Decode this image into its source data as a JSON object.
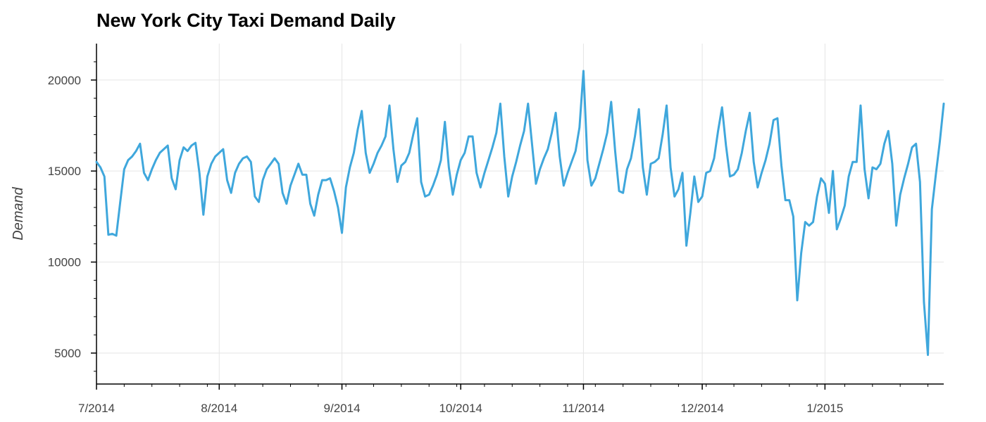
{
  "chart_data": {
    "type": "line",
    "title": "New York City Taxi Demand Daily",
    "xlabel": "",
    "ylabel": "Demand",
    "x_start": "2014-07-01",
    "x_end": "2015-01-31",
    "ylim": [
      3300,
      22000
    ],
    "grid": true,
    "x_ticks": [
      {
        "date": "2014-07-01",
        "label": "7/2014"
      },
      {
        "date": "2014-08-01",
        "label": "8/2014"
      },
      {
        "date": "2014-09-01",
        "label": "9/2014"
      },
      {
        "date": "2014-10-01",
        "label": "10/2014"
      },
      {
        "date": "2014-11-01",
        "label": "11/2014"
      },
      {
        "date": "2014-12-01",
        "label": "12/2014"
      },
      {
        "date": "2015-01-01",
        "label": "1/2015"
      }
    ],
    "y_ticks": [
      5000,
      10000,
      15000,
      20000
    ],
    "series": [
      {
        "color": "#3fa7dc",
        "points": [
          [
            "2014-07-01",
            15500
          ],
          [
            "2014-07-02",
            15200
          ],
          [
            "2014-07-03",
            14700
          ],
          [
            "2014-07-04",
            11500
          ],
          [
            "2014-07-05",
            11550
          ],
          [
            "2014-07-06",
            11450
          ],
          [
            "2014-07-07",
            13300
          ],
          [
            "2014-07-08",
            15100
          ],
          [
            "2014-07-09",
            15600
          ],
          [
            "2014-07-10",
            15800
          ],
          [
            "2014-07-11",
            16100
          ],
          [
            "2014-07-12",
            16500
          ],
          [
            "2014-07-13",
            14900
          ],
          [
            "2014-07-14",
            14500
          ],
          [
            "2014-07-15",
            15100
          ],
          [
            "2014-07-16",
            15600
          ],
          [
            "2014-07-17",
            16000
          ],
          [
            "2014-07-18",
            16200
          ],
          [
            "2014-07-19",
            16400
          ],
          [
            "2014-07-20",
            14600
          ],
          [
            "2014-07-21",
            14000
          ],
          [
            "2014-07-22",
            15600
          ],
          [
            "2014-07-23",
            16300
          ],
          [
            "2014-07-24",
            16100
          ],
          [
            "2014-07-25",
            16400
          ],
          [
            "2014-07-26",
            16550
          ],
          [
            "2014-07-27",
            14900
          ],
          [
            "2014-07-28",
            12600
          ],
          [
            "2014-07-29",
            14700
          ],
          [
            "2014-07-30",
            15400
          ],
          [
            "2014-07-31",
            15800
          ],
          [
            "2014-08-01",
            16000
          ],
          [
            "2014-08-02",
            16200
          ],
          [
            "2014-08-03",
            14500
          ],
          [
            "2014-08-04",
            13800
          ],
          [
            "2014-08-05",
            14900
          ],
          [
            "2014-08-06",
            15400
          ],
          [
            "2014-08-07",
            15700
          ],
          [
            "2014-08-08",
            15800
          ],
          [
            "2014-08-09",
            15500
          ],
          [
            "2014-08-10",
            13600
          ],
          [
            "2014-08-11",
            13300
          ],
          [
            "2014-08-12",
            14500
          ],
          [
            "2014-08-13",
            15100
          ],
          [
            "2014-08-14",
            15400
          ],
          [
            "2014-08-15",
            15700
          ],
          [
            "2014-08-16",
            15400
          ],
          [
            "2014-08-17",
            13800
          ],
          [
            "2014-08-18",
            13200
          ],
          [
            "2014-08-19",
            14200
          ],
          [
            "2014-08-20",
            14800
          ],
          [
            "2014-08-21",
            15400
          ],
          [
            "2014-08-22",
            14800
          ],
          [
            "2014-08-23",
            14800
          ],
          [
            "2014-08-24",
            13200
          ],
          [
            "2014-08-25",
            12550
          ],
          [
            "2014-08-26",
            13700
          ],
          [
            "2014-08-27",
            14500
          ],
          [
            "2014-08-28",
            14500
          ],
          [
            "2014-08-29",
            14600
          ],
          [
            "2014-08-30",
            13900
          ],
          [
            "2014-08-31",
            13000
          ],
          [
            "2014-09-01",
            11600
          ],
          [
            "2014-09-02",
            14100
          ],
          [
            "2014-09-03",
            15200
          ],
          [
            "2014-09-04",
            16000
          ],
          [
            "2014-09-05",
            17300
          ],
          [
            "2014-09-06",
            18300
          ],
          [
            "2014-09-07",
            16000
          ],
          [
            "2014-09-08",
            14900
          ],
          [
            "2014-09-09",
            15400
          ],
          [
            "2014-09-10",
            16000
          ],
          [
            "2014-09-11",
            16400
          ],
          [
            "2014-09-12",
            16900
          ],
          [
            "2014-09-13",
            18600
          ],
          [
            "2014-09-14",
            16200
          ],
          [
            "2014-09-15",
            14400
          ],
          [
            "2014-09-16",
            15300
          ],
          [
            "2014-09-17",
            15500
          ],
          [
            "2014-09-18",
            16000
          ],
          [
            "2014-09-19",
            17000
          ],
          [
            "2014-09-20",
            17900
          ],
          [
            "2014-09-21",
            14400
          ],
          [
            "2014-09-22",
            13600
          ],
          [
            "2014-09-23",
            13700
          ],
          [
            "2014-09-24",
            14200
          ],
          [
            "2014-09-25",
            14800
          ],
          [
            "2014-09-26",
            15600
          ],
          [
            "2014-09-27",
            17700
          ],
          [
            "2014-09-28",
            15200
          ],
          [
            "2014-09-29",
            13700
          ],
          [
            "2014-09-30",
            14800
          ],
          [
            "2014-10-01",
            15600
          ],
          [
            "2014-10-02",
            16000
          ],
          [
            "2014-10-03",
            16900
          ],
          [
            "2014-10-04",
            16900
          ],
          [
            "2014-10-05",
            14900
          ],
          [
            "2014-10-06",
            14100
          ],
          [
            "2014-10-07",
            14900
          ],
          [
            "2014-10-08",
            15600
          ],
          [
            "2014-10-09",
            16300
          ],
          [
            "2014-10-10",
            17100
          ],
          [
            "2014-10-11",
            18700
          ],
          [
            "2014-10-12",
            15800
          ],
          [
            "2014-10-13",
            13600
          ],
          [
            "2014-10-14",
            14700
          ],
          [
            "2014-10-15",
            15500
          ],
          [
            "2014-10-16",
            16400
          ],
          [
            "2014-10-17",
            17200
          ],
          [
            "2014-10-18",
            18700
          ],
          [
            "2014-10-19",
            16500
          ],
          [
            "2014-10-20",
            14300
          ],
          [
            "2014-10-21",
            15100
          ],
          [
            "2014-10-22",
            15700
          ],
          [
            "2014-10-23",
            16200
          ],
          [
            "2014-10-24",
            17100
          ],
          [
            "2014-10-25",
            18200
          ],
          [
            "2014-10-26",
            15800
          ],
          [
            "2014-10-27",
            14200
          ],
          [
            "2014-10-28",
            14900
          ],
          [
            "2014-10-29",
            15500
          ],
          [
            "2014-10-30",
            16100
          ],
          [
            "2014-10-31",
            17400
          ],
          [
            "2014-11-01",
            20500
          ],
          [
            "2014-11-02",
            15600
          ],
          [
            "2014-11-03",
            14200
          ],
          [
            "2014-11-04",
            14600
          ],
          [
            "2014-11-05",
            15400
          ],
          [
            "2014-11-06",
            16200
          ],
          [
            "2014-11-07",
            17100
          ],
          [
            "2014-11-08",
            18800
          ],
          [
            "2014-11-09",
            16100
          ],
          [
            "2014-11-10",
            13900
          ],
          [
            "2014-11-11",
            13800
          ],
          [
            "2014-11-12",
            15100
          ],
          [
            "2014-11-13",
            15700
          ],
          [
            "2014-11-14",
            16900
          ],
          [
            "2014-11-15",
            18400
          ],
          [
            "2014-11-16",
            15200
          ],
          [
            "2014-11-17",
            13700
          ],
          [
            "2014-11-18",
            15400
          ],
          [
            "2014-11-19",
            15500
          ],
          [
            "2014-11-20",
            15700
          ],
          [
            "2014-11-21",
            17000
          ],
          [
            "2014-11-22",
            18600
          ],
          [
            "2014-11-23",
            15200
          ],
          [
            "2014-11-24",
            13600
          ],
          [
            "2014-11-25",
            14000
          ],
          [
            "2014-11-26",
            14900
          ],
          [
            "2014-11-27",
            10900
          ],
          [
            "2014-11-28",
            12700
          ],
          [
            "2014-11-29",
            14700
          ],
          [
            "2014-11-30",
            13300
          ],
          [
            "2014-12-01",
            13600
          ],
          [
            "2014-12-02",
            14900
          ],
          [
            "2014-12-03",
            15000
          ],
          [
            "2014-12-04",
            15700
          ],
          [
            "2014-12-05",
            17200
          ],
          [
            "2014-12-06",
            18500
          ],
          [
            "2014-12-07",
            16400
          ],
          [
            "2014-12-08",
            14700
          ],
          [
            "2014-12-09",
            14800
          ],
          [
            "2014-12-10",
            15100
          ],
          [
            "2014-12-11",
            16000
          ],
          [
            "2014-12-12",
            17200
          ],
          [
            "2014-12-13",
            18200
          ],
          [
            "2014-12-14",
            15500
          ],
          [
            "2014-12-15",
            14100
          ],
          [
            "2014-12-16",
            14900
          ],
          [
            "2014-12-17",
            15600
          ],
          [
            "2014-12-18",
            16500
          ],
          [
            "2014-12-19",
            17800
          ],
          [
            "2014-12-20",
            17900
          ],
          [
            "2014-12-21",
            15300
          ],
          [
            "2014-12-22",
            13400
          ],
          [
            "2014-12-23",
            13400
          ],
          [
            "2014-12-24",
            12500
          ],
          [
            "2014-12-25",
            7900
          ],
          [
            "2014-12-26",
            10500
          ],
          [
            "2014-12-27",
            12200
          ],
          [
            "2014-12-28",
            12000
          ],
          [
            "2014-12-29",
            12200
          ],
          [
            "2014-12-30",
            13600
          ],
          [
            "2014-12-31",
            14600
          ],
          [
            "2015-01-01",
            14300
          ],
          [
            "2015-01-02",
            12700
          ],
          [
            "2015-01-03",
            15000
          ],
          [
            "2015-01-04",
            11800
          ],
          [
            "2015-01-05",
            12400
          ],
          [
            "2015-01-06",
            13100
          ],
          [
            "2015-01-07",
            14700
          ],
          [
            "2015-01-08",
            15500
          ],
          [
            "2015-01-09",
            15500
          ],
          [
            "2015-01-10",
            18600
          ],
          [
            "2015-01-11",
            15100
          ],
          [
            "2015-01-12",
            13500
          ],
          [
            "2015-01-13",
            15200
          ],
          [
            "2015-01-14",
            15100
          ],
          [
            "2015-01-15",
            15400
          ],
          [
            "2015-01-16",
            16500
          ],
          [
            "2015-01-17",
            17200
          ],
          [
            "2015-01-18",
            15400
          ],
          [
            "2015-01-19",
            12000
          ],
          [
            "2015-01-20",
            13700
          ],
          [
            "2015-01-21",
            14600
          ],
          [
            "2015-01-22",
            15400
          ],
          [
            "2015-01-23",
            16300
          ],
          [
            "2015-01-24",
            16500
          ],
          [
            "2015-01-25",
            14400
          ],
          [
            "2015-01-26",
            7800
          ],
          [
            "2015-01-27",
            4900
          ],
          [
            "2015-01-28",
            12900
          ],
          [
            "2015-01-29",
            14800
          ],
          [
            "2015-01-30",
            16600
          ],
          [
            "2015-01-31",
            18700
          ]
        ]
      }
    ]
  }
}
